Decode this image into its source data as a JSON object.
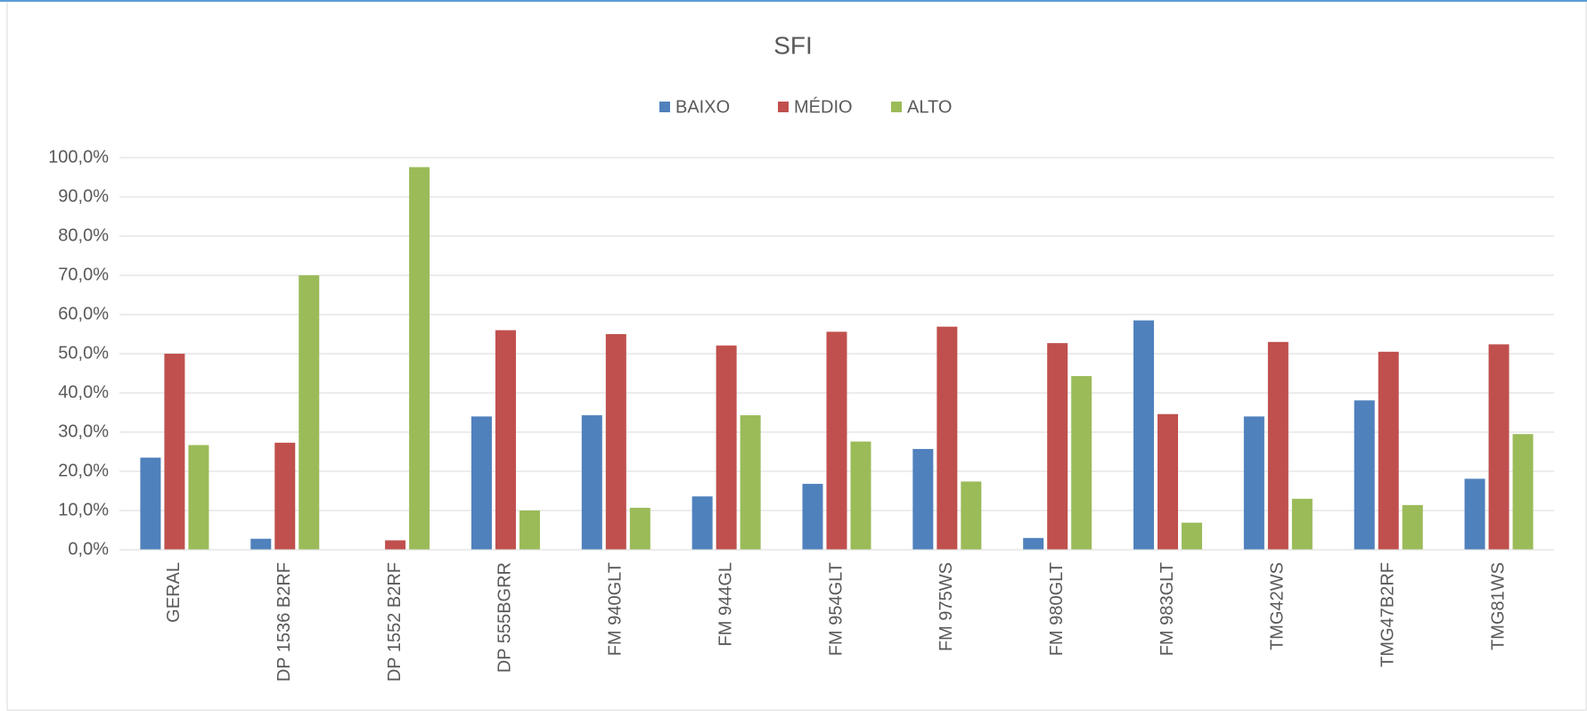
{
  "chart_data": {
    "type": "bar",
    "title": "SFI",
    "categories": [
      "GERAL",
      "DP 1536 B2RF",
      "DP 1552 B2RF",
      "DP 555BGRR",
      "FM 940GLT",
      "FM 944GL",
      "FM 954GLT",
      "FM 975WS",
      "FM 980GLT",
      "FM 983GLT",
      "TMG42WS",
      "TMG47B2RF",
      "TMG81WS"
    ],
    "series": [
      {
        "name": "BAIXO",
        "color": "#4f81bd",
        "values": [
          23.5,
          2.8,
          0,
          34,
          34.3,
          13.6,
          16.8,
          25.7,
          3,
          58.5,
          34,
          38.1,
          18.1
        ]
      },
      {
        "name": "MÉDIO",
        "color": "#c0504d",
        "values": [
          50,
          27.3,
          2.4,
          56,
          55,
          52.1,
          55.6,
          56.9,
          52.7,
          34.6,
          53,
          50.5,
          52.4
        ]
      },
      {
        "name": "ALTO",
        "color": "#9bbb59",
        "values": [
          26.7,
          70,
          97.6,
          10,
          10.7,
          34.3,
          27.6,
          17.4,
          44.3,
          6.9,
          13,
          11.4,
          29.5
        ]
      }
    ],
    "ylim": [
      0,
      100
    ],
    "yticks": [
      {
        "value": 0,
        "label": "0,0%"
      },
      {
        "value": 10,
        "label": "10,0%"
      },
      {
        "value": 20,
        "label": "20,0%"
      },
      {
        "value": 30,
        "label": "30,0%"
      },
      {
        "value": 40,
        "label": "40,0%"
      },
      {
        "value": 50,
        "label": "50,0%"
      },
      {
        "value": 60,
        "label": "60,0%"
      },
      {
        "value": 70,
        "label": "70,0%"
      },
      {
        "value": 80,
        "label": "80,0%"
      },
      {
        "value": 90,
        "label": "90,0%"
      },
      {
        "value": 100,
        "label": "100,0%"
      }
    ],
    "grid": true,
    "legend": "top"
  }
}
